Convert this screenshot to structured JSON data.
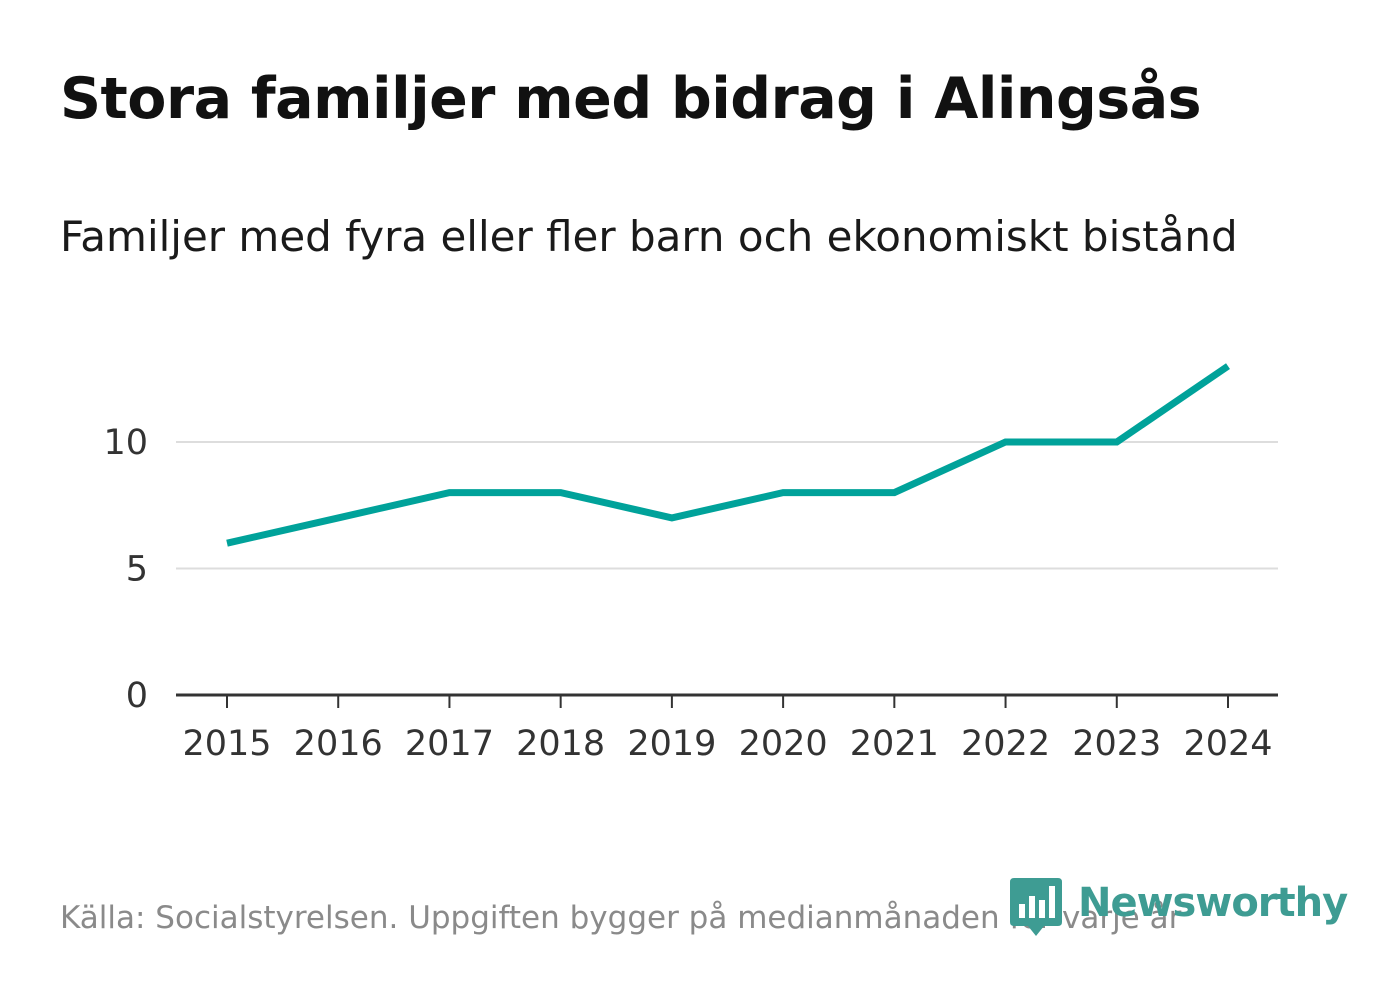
{
  "title": "Stora familjer med bidrag i Alingsås",
  "subtitle": "Familjer med fyra eller fler barn och ekonomiskt bistånd",
  "source": "Källa: Socialstyrelsen. Uppgiften bygger på medianmånaden för varje år",
  "logo": {
    "text": "Newsworthy",
    "icon": "newsworthy-logo-icon"
  },
  "colors": {
    "line": "#00A29A",
    "logo": "#3E9C93",
    "grid": "#dddddd",
    "axis": "#333333"
  },
  "chart_data": {
    "type": "line",
    "title": "Stora familjer med bidrag i Alingsås",
    "subtitle": "Familjer med fyra eller fler barn och ekonomiskt bistånd",
    "x": [
      "2015",
      "2016",
      "2017",
      "2018",
      "2019",
      "2020",
      "2021",
      "2022",
      "2023",
      "2024"
    ],
    "series": [
      {
        "name": "Familjer med fyra eller fler barn och ekonomiskt bistånd",
        "values": [
          6,
          7,
          8,
          8,
          7,
          8,
          8,
          10,
          10,
          13
        ]
      }
    ],
    "yticks": [
      0,
      5,
      10
    ],
    "ylim": [
      0,
      14
    ],
    "xlabel": "",
    "ylabel": "",
    "grid": true
  }
}
